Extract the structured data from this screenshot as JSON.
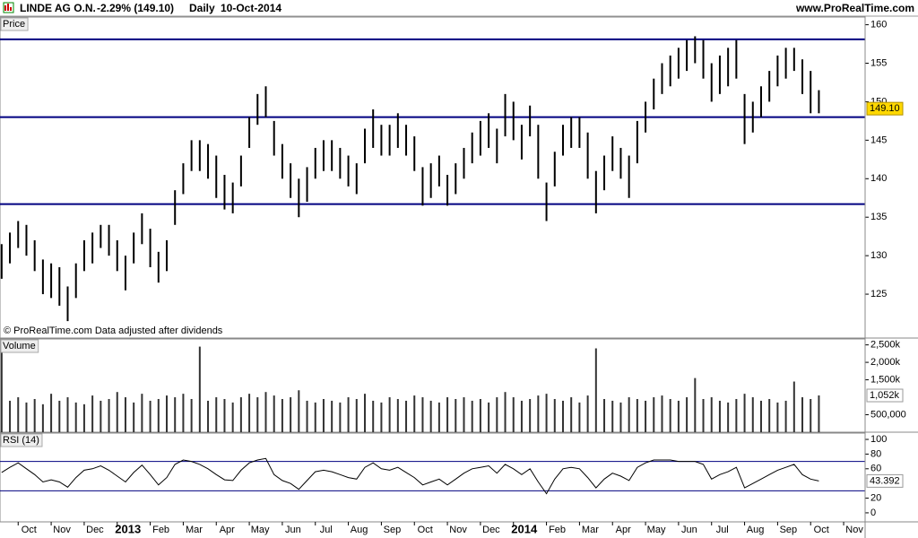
{
  "header": {
    "title": "LINDE AG O.N.",
    "change": "-2.29% (149.10)",
    "period": "Daily",
    "date": "10-Oct-2014",
    "site": "www.ProRealTime.com"
  },
  "chart_data": [
    {
      "type": "bar-range",
      "panel_label": "Price",
      "note": "© ProRealTime.com  Data adjusted after dividends",
      "color": "#000000",
      "xlim": [
        -2.2,
        102.6
      ],
      "ylim": [
        119.3,
        161
      ],
      "yticks": [
        125,
        130,
        135,
        140,
        145,
        150,
        155,
        160
      ],
      "hlines": [
        158.1,
        148,
        136.7
      ],
      "hline_color": "#000080",
      "last_label": {
        "value": 149.1,
        "label": "149.10"
      },
      "x": [
        -2,
        -1,
        0,
        1,
        2,
        3,
        4,
        5,
        6,
        7,
        8,
        9,
        10,
        11,
        12,
        13,
        14,
        15,
        16,
        17,
        18,
        19,
        20,
        21,
        22,
        23,
        24,
        25,
        26,
        27,
        28,
        29,
        30,
        31,
        32,
        33,
        34,
        35,
        36,
        37,
        38,
        39,
        40,
        41,
        42,
        43,
        44,
        45,
        46,
        47,
        48,
        49,
        50,
        51,
        52,
        53,
        54,
        55,
        56,
        57,
        58,
        59,
        60,
        61,
        62,
        63,
        64,
        65,
        66,
        67,
        68,
        69,
        70,
        71,
        72,
        73,
        74,
        75,
        76,
        77,
        78,
        79,
        80,
        81,
        82,
        83,
        84,
        85,
        86,
        87,
        88,
        89,
        90,
        91,
        92,
        93,
        94,
        95,
        96,
        97
      ],
      "high": [
        131.5,
        133,
        134.5,
        134,
        132,
        129.5,
        129,
        128.5,
        126,
        129,
        132,
        133,
        134,
        134,
        132,
        130,
        133,
        135.5,
        133.5,
        130.5,
        132,
        138.5,
        142,
        145,
        145,
        144.5,
        143,
        140.5,
        139.5,
        143,
        148,
        151,
        152,
        147.5,
        144.5,
        142,
        140,
        141.5,
        144,
        145,
        145,
        144,
        143,
        142,
        146.5,
        149,
        147,
        147,
        148.5,
        147,
        145.5,
        141.5,
        142,
        143,
        140.5,
        142,
        144,
        146,
        147.5,
        148.5,
        146.5,
        151,
        150,
        147,
        149.5,
        147,
        139.5,
        143.5,
        147,
        148,
        148,
        146,
        141,
        143,
        145.5,
        144,
        143,
        147.5,
        150,
        153,
        155,
        156,
        157,
        158,
        158.5,
        158,
        155,
        156,
        157,
        158,
        151,
        150,
        152,
        154,
        156,
        157,
        157,
        155.5,
        154,
        151.5
      ],
      "low": [
        127,
        129,
        131,
        130,
        128,
        125,
        124.5,
        123.5,
        121.5,
        124.5,
        128,
        129,
        131,
        130,
        128,
        125.5,
        129,
        131.5,
        128.5,
        126.5,
        128,
        134,
        138,
        141,
        141,
        140,
        137.5,
        136,
        135.5,
        139,
        144,
        147,
        148,
        143,
        140,
        137.5,
        135,
        137,
        140,
        141,
        141,
        140,
        139,
        138,
        142,
        144,
        143,
        143,
        144,
        143,
        141,
        136.5,
        137.5,
        139,
        136.5,
        138,
        140,
        142,
        143,
        144,
        142,
        145.5,
        145,
        142.5,
        145.5,
        140,
        134.5,
        139,
        143,
        144,
        144,
        140,
        135.5,
        138.5,
        141,
        140,
        137.5,
        142,
        146,
        149,
        151,
        152,
        153,
        154,
        155,
        153,
        150,
        151,
        152,
        153,
        144.5,
        146,
        148,
        150,
        152,
        153,
        154,
        151,
        148.5,
        148.5
      ]
    },
    {
      "type": "bar",
      "panel_label": "Volume",
      "color": "#333333",
      "xlim": [
        -2.2,
        102.6
      ],
      "ylim": [
        0,
        2670000
      ],
      "yticks": [
        {
          "value": 500000,
          "label": "500,000"
        },
        {
          "value": 1500000,
          "label": "1,500k"
        },
        {
          "value": 2000000,
          "label": "2,000k"
        },
        {
          "value": 2500000,
          "label": "2,500k"
        }
      ],
      "last_label": {
        "value": 1052000,
        "label": "1,052k"
      },
      "x": [
        -2,
        -1,
        0,
        1,
        2,
        3,
        4,
        5,
        6,
        7,
        8,
        9,
        10,
        11,
        12,
        13,
        14,
        15,
        16,
        17,
        18,
        19,
        20,
        21,
        22,
        23,
        24,
        25,
        26,
        27,
        28,
        29,
        30,
        31,
        32,
        33,
        34,
        35,
        36,
        37,
        38,
        39,
        40,
        41,
        42,
        43,
        44,
        45,
        46,
        47,
        48,
        49,
        50,
        51,
        52,
        53,
        54,
        55,
        56,
        57,
        58,
        59,
        60,
        61,
        62,
        63,
        64,
        65,
        66,
        67,
        68,
        69,
        70,
        71,
        72,
        73,
        74,
        75,
        76,
        77,
        78,
        79,
        80,
        81,
        82,
        83,
        84,
        85,
        86,
        87,
        88,
        89,
        90,
        91,
        92,
        93,
        94,
        95,
        96,
        97
      ],
      "values": [
        2300000,
        900000,
        1000000,
        850000,
        950000,
        800000,
        1100000,
        900000,
        1000000,
        850000,
        800000,
        1050000,
        900000,
        950000,
        1150000,
        1000000,
        850000,
        1100000,
        900000,
        950000,
        1050000,
        1000000,
        1100000,
        950000,
        2450000,
        900000,
        1000000,
        950000,
        850000,
        1000000,
        1100000,
        1000000,
        1150000,
        1050000,
        950000,
        1000000,
        1200000,
        900000,
        850000,
        950000,
        900000,
        850000,
        1000000,
        950000,
        1100000,
        900000,
        850000,
        1000000,
        950000,
        900000,
        1050000,
        1000000,
        900000,
        850000,
        1000000,
        950000,
        1000000,
        900000,
        950000,
        850000,
        1000000,
        1150000,
        1000000,
        900000,
        950000,
        1050000,
        1100000,
        950000,
        900000,
        1000000,
        850000,
        1050000,
        2400000,
        950000,
        900000,
        850000,
        1000000,
        950000,
        900000,
        1000000,
        1050000,
        950000,
        900000,
        1000000,
        1550000,
        950000,
        1000000,
        900000,
        850000,
        950000,
        1100000,
        1000000,
        900000,
        950000,
        850000,
        900000,
        1450000,
        1000000,
        950000,
        1052000
      ]
    },
    {
      "type": "line",
      "panel_label": "RSI (14)",
      "color": "#000000",
      "xlim": [
        -2.2,
        102.6
      ],
      "ylim": [
        -12.3,
        108.6
      ],
      "yticks": [
        0,
        20,
        60,
        80,
        100
      ],
      "hlines": [
        70,
        30
      ],
      "hline_color": "#000080",
      "last_label": {
        "value": 43.392,
        "label": "43.392"
      },
      "xticks": [
        {
          "value": 0,
          "label": "Oct"
        },
        {
          "value": 4,
          "label": "Nov"
        },
        {
          "value": 8,
          "label": "Dec"
        },
        {
          "value": 12,
          "label": "2013"
        },
        {
          "value": 16,
          "label": "Feb"
        },
        {
          "value": 20,
          "label": "Mar"
        },
        {
          "value": 24,
          "label": "Apr"
        },
        {
          "value": 28,
          "label": "May"
        },
        {
          "value": 32,
          "label": "Jun"
        },
        {
          "value": 36,
          "label": "Jul"
        },
        {
          "value": 40,
          "label": "Aug"
        },
        {
          "value": 44,
          "label": "Sep"
        },
        {
          "value": 48,
          "label": "Oct"
        },
        {
          "value": 52,
          "label": "Nov"
        },
        {
          "value": 56,
          "label": "Dec"
        },
        {
          "value": 60,
          "label": "2014"
        },
        {
          "value": 64,
          "label": "Feb"
        },
        {
          "value": 68,
          "label": "Mar"
        },
        {
          "value": 72,
          "label": "Apr"
        },
        {
          "value": 76,
          "label": "May"
        },
        {
          "value": 80,
          "label": "Jun"
        },
        {
          "value": 84,
          "label": "Jul"
        },
        {
          "value": 88,
          "label": "Aug"
        },
        {
          "value": 92,
          "label": "Sep"
        },
        {
          "value": 96,
          "label": "Oct"
        },
        {
          "value": 100,
          "label": "Nov"
        }
      ],
      "x": [
        -2,
        -1,
        0,
        1,
        2,
        3,
        4,
        5,
        6,
        7,
        8,
        9,
        10,
        11,
        12,
        13,
        14,
        15,
        16,
        17,
        18,
        19,
        20,
        21,
        22,
        23,
        24,
        25,
        26,
        27,
        28,
        29,
        30,
        31,
        32,
        33,
        34,
        35,
        36,
        37,
        38,
        39,
        40,
        41,
        42,
        43,
        44,
        45,
        46,
        47,
        48,
        49,
        50,
        51,
        52,
        53,
        54,
        55,
        56,
        57,
        58,
        59,
        60,
        61,
        62,
        63,
        64,
        65,
        66,
        67,
        68,
        69,
        70,
        71,
        72,
        73,
        74,
        75,
        76,
        77,
        78,
        79,
        80,
        81,
        82,
        83,
        84,
        85,
        86,
        87,
        88,
        89,
        90,
        91,
        92,
        93,
        94,
        95,
        96,
        97
      ],
      "values": [
        55,
        62,
        68,
        60,
        52,
        42,
        45,
        42,
        35,
        48,
        58,
        60,
        64,
        58,
        50,
        42,
        55,
        65,
        52,
        38,
        48,
        66,
        72,
        70,
        66,
        60,
        52,
        45,
        44,
        58,
        68,
        72,
        74,
        52,
        44,
        40,
        32,
        44,
        56,
        58,
        56,
        52,
        48,
        46,
        62,
        68,
        60,
        58,
        62,
        55,
        48,
        38,
        42,
        46,
        38,
        46,
        54,
        60,
        62,
        64,
        54,
        66,
        60,
        52,
        60,
        42,
        26,
        46,
        60,
        62,
        60,
        48,
        34,
        46,
        54,
        50,
        44,
        62,
        68,
        72,
        72,
        72,
        70,
        70,
        70,
        66,
        46,
        52,
        56,
        62,
        34,
        40,
        46,
        52,
        58,
        62,
        66,
        52,
        46,
        43.392
      ]
    }
  ]
}
